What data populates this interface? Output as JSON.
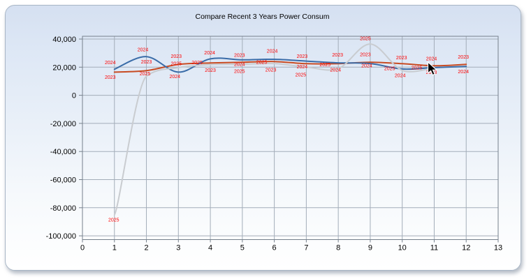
{
  "window": {
    "title": "Compare Recent 3 Years Power Consum"
  },
  "chart_data": {
    "type": "line",
    "title": "Compare Recent 3 Years Power Consum",
    "xlabel": "",
    "ylabel": "",
    "xlim": [
      0,
      13
    ],
    "ylim": [
      -103000,
      42000
    ],
    "grid": true,
    "legend": "none (series identified by red point labels)",
    "x_ticks": [
      0,
      1,
      2,
      3,
      4,
      5,
      6,
      7,
      8,
      9,
      10,
      11,
      12,
      13
    ],
    "y_ticks": [
      40000,
      20000,
      0,
      -20000,
      -40000,
      -60000,
      -80000,
      -100000
    ],
    "point_label_color": "#ff0000",
    "axis_color": "#76808c",
    "grid_color": "#a3adb9",
    "series": [
      {
        "name": "2023",
        "color": "#c84b22",
        "x": [
          1,
          2,
          3,
          4,
          5,
          6,
          7,
          8,
          9,
          10,
          11,
          12
        ],
        "values": [
          16500,
          17500,
          22000,
          23000,
          23500,
          24000,
          22500,
          22500,
          23500,
          22500,
          21000,
          22000
        ]
      },
      {
        "name": "2024",
        "color": "#3a6ca8",
        "x": [
          1,
          2,
          3,
          4,
          5,
          6,
          7,
          8,
          9,
          10,
          11,
          12
        ],
        "values": [
          18500,
          27500,
          16500,
          25900,
          25200,
          25600,
          24300,
          23100,
          22600,
          18700,
          19700,
          20500
        ]
      },
      {
        "name": "2025",
        "color": "#c9ccd0",
        "x": [
          1,
          2,
          3,
          4,
          5,
          6,
          7,
          8,
          9,
          10,
          11
        ],
        "values": [
          -85000,
          13500,
          19700,
          21900,
          22100,
          22600,
          20100,
          19000,
          36500,
          17700,
          19600
        ]
      }
    ]
  }
}
